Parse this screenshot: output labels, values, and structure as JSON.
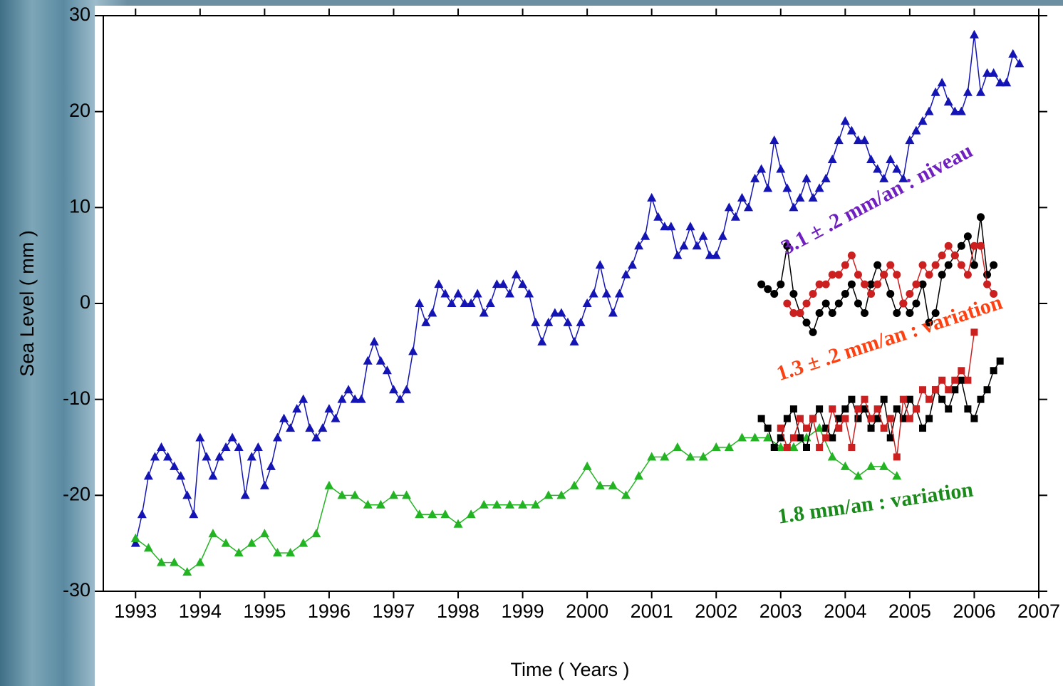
{
  "chart_data": {
    "type": "line",
    "xlabel": "Time  ( Years )",
    "ylabel": "Sea Level  ( mm )",
    "xlim": [
      1992.5,
      2007
    ],
    "ylim": [
      -30,
      30
    ],
    "xticks": [
      1993,
      1994,
      1995,
      1996,
      1997,
      1998,
      1999,
      2000,
      2001,
      2002,
      2003,
      2004,
      2005,
      2006,
      2007
    ],
    "yticks": [
      -30,
      -20,
      -10,
      0,
      10,
      20,
      30
    ],
    "series": [
      {
        "color": "#1414b4",
        "marker": "triangle",
        "x": [
          1993.0,
          1993.1,
          1993.2,
          1993.3,
          1993.4,
          1993.5,
          1993.6,
          1993.7,
          1993.8,
          1993.9,
          1994.0,
          1994.1,
          1994.2,
          1994.3,
          1994.4,
          1994.5,
          1994.6,
          1994.7,
          1994.8,
          1994.9,
          1995.0,
          1995.1,
          1995.2,
          1995.3,
          1995.4,
          1995.5,
          1995.6,
          1995.7,
          1995.8,
          1995.9,
          1996.0,
          1996.1,
          1996.2,
          1996.3,
          1996.4,
          1996.5,
          1996.6,
          1996.7,
          1996.8,
          1996.9,
          1997.0,
          1997.1,
          1997.2,
          1997.3,
          1997.4,
          1997.5,
          1997.6,
          1997.7,
          1997.8,
          1997.9,
          1998.0,
          1998.1,
          1998.2,
          1998.3,
          1998.4,
          1998.5,
          1998.6,
          1998.7,
          1998.8,
          1998.9,
          1999.0,
          1999.1,
          1999.2,
          1999.3,
          1999.4,
          1999.5,
          1999.6,
          1999.7,
          1999.8,
          1999.9,
          2000.0,
          2000.1,
          2000.2,
          2000.3,
          2000.4,
          2000.5,
          2000.6,
          2000.7,
          2000.8,
          2000.9,
          2001.0,
          2001.1,
          2001.2,
          2001.3,
          2001.4,
          2001.5,
          2001.6,
          2001.7,
          2001.8,
          2001.9,
          2002.0,
          2002.1,
          2002.2,
          2002.3,
          2002.4,
          2002.5,
          2002.6,
          2002.7,
          2002.8,
          2002.9,
          2003.0,
          2003.1,
          2003.2,
          2003.3,
          2003.4,
          2003.5,
          2003.6,
          2003.7,
          2003.8,
          2003.9,
          2004.0,
          2004.1,
          2004.2,
          2004.3,
          2004.4,
          2004.5,
          2004.6,
          2004.7,
          2004.8,
          2004.9,
          2005.0,
          2005.1,
          2005.2,
          2005.3,
          2005.4,
          2005.5,
          2005.6,
          2005.7,
          2005.8,
          2005.9,
          2006.0,
          2006.1,
          2006.2,
          2006.3,
          2006.4,
          2006.5,
          2006.6,
          2006.7
        ],
        "values": [
          -25,
          -22,
          -18,
          -16,
          -15,
          -16,
          -17,
          -18,
          -20,
          -22,
          -14,
          -16,
          -18,
          -16,
          -15,
          -14,
          -15,
          -20,
          -16,
          -15,
          -19,
          -17,
          -14,
          -12,
          -13,
          -11,
          -10,
          -13,
          -14,
          -13,
          -11,
          -12,
          -10,
          -9,
          -10,
          -10,
          -6,
          -4,
          -6,
          -7,
          -9,
          -10,
          -9,
          -5,
          0,
          -2,
          -1,
          2,
          1,
          0,
          1,
          0,
          0,
          1,
          -1,
          0,
          2,
          2,
          1,
          3,
          2,
          1,
          -2,
          -4,
          -2,
          -1,
          -1,
          -2,
          -4,
          -2,
          0,
          1,
          4,
          1,
          -1,
          1,
          3,
          4,
          6,
          7,
          11,
          9,
          8,
          8,
          5,
          6,
          8,
          6,
          7,
          5,
          5,
          7,
          10,
          9,
          11,
          10,
          13,
          14,
          12,
          17,
          14,
          12,
          10,
          11,
          13,
          11,
          12,
          13,
          15,
          17,
          19,
          18,
          17,
          17,
          15,
          14,
          13,
          15,
          14,
          13,
          17,
          18,
          19,
          20,
          22,
          23,
          21,
          20,
          20,
          22,
          28,
          22,
          24,
          24,
          23,
          23,
          26,
          25
        ]
      },
      {
        "color": "#22b422",
        "marker": "triangle",
        "x": [
          1993.0,
          1993.2,
          1993.4,
          1993.6,
          1993.8,
          1994.0,
          1994.2,
          1994.4,
          1994.6,
          1994.8,
          1995.0,
          1995.2,
          1995.4,
          1995.6,
          1995.8,
          1996.0,
          1996.2,
          1996.4,
          1996.6,
          1996.8,
          1997.0,
          1997.2,
          1997.4,
          1997.6,
          1997.8,
          1998.0,
          1998.2,
          1998.4,
          1998.6,
          1998.8,
          1999.0,
          1999.2,
          1999.4,
          1999.6,
          1999.8,
          2000.0,
          2000.2,
          2000.4,
          2000.6,
          2000.8,
          2001.0,
          2001.2,
          2001.4,
          2001.6,
          2001.8,
          2002.0,
          2002.2,
          2002.4,
          2002.6,
          2002.8,
          2003.0,
          2003.2,
          2003.4,
          2003.6,
          2003.8,
          2004.0,
          2004.2,
          2004.4,
          2004.6,
          2004.8
        ],
        "values": [
          -24.5,
          -25.5,
          -27,
          -27,
          -28,
          -27,
          -24,
          -25,
          -26,
          -25,
          -24,
          -26,
          -26,
          -25,
          -24,
          -19,
          -20,
          -20,
          -21,
          -21,
          -20,
          -20,
          -22,
          -22,
          -22,
          -23,
          -22,
          -21,
          -21,
          -21,
          -21,
          -21,
          -20,
          -20,
          -19,
          -17,
          -19,
          -19,
          -20,
          -18,
          -16,
          -16,
          -15,
          -16,
          -16,
          -15,
          -15,
          -14,
          -14,
          -14,
          -15,
          -15,
          -14,
          -13,
          -16,
          -17,
          -18,
          -17,
          -17,
          -18
        ]
      },
      {
        "color": "#000000",
        "marker": "circle",
        "x": [
          2002.7,
          2002.8,
          2002.9,
          2003.0,
          2003.1,
          2003.2,
          2003.3,
          2003.4,
          2003.5,
          2003.6,
          2003.7,
          2003.8,
          2003.9,
          2004.0,
          2004.1,
          2004.2,
          2004.3,
          2004.4,
          2004.5,
          2004.6,
          2004.7,
          2004.8,
          2004.9,
          2005.0,
          2005.1,
          2005.2,
          2005.3,
          2005.4,
          2005.5,
          2005.6,
          2005.7,
          2005.8,
          2005.9,
          2006.0,
          2006.1,
          2006.2,
          2006.3
        ],
        "values": [
          2,
          1.5,
          1,
          2,
          6,
          1,
          -1,
          -2,
          -3,
          -1,
          0,
          -1,
          0,
          1,
          2,
          0,
          -1,
          2,
          4,
          3,
          1,
          -1,
          0,
          -1,
          0,
          2,
          -2,
          -1,
          3,
          4,
          5,
          6,
          7,
          4,
          9,
          3,
          4
        ]
      },
      {
        "color": "#cc2020",
        "marker": "circle",
        "x": [
          2003.1,
          2003.2,
          2003.3,
          2003.4,
          2003.5,
          2003.6,
          2003.7,
          2003.8,
          2003.9,
          2004.0,
          2004.1,
          2004.2,
          2004.3,
          2004.4,
          2004.5,
          2004.6,
          2004.7,
          2004.8,
          2004.9,
          2005.0,
          2005.1,
          2005.2,
          2005.3,
          2005.4,
          2005.5,
          2005.6,
          2005.7,
          2005.8,
          2005.9,
          2006.0,
          2006.1,
          2006.2,
          2006.3
        ],
        "values": [
          0,
          -1,
          -1,
          0,
          1,
          2,
          2,
          3,
          3,
          4,
          5,
          3,
          2,
          1,
          2,
          3,
          4,
          3,
          0,
          1,
          2,
          4,
          3,
          4,
          5,
          6,
          5,
          4,
          3,
          6,
          6,
          2,
          1
        ]
      },
      {
        "color": "#000000",
        "marker": "square",
        "x": [
          2002.7,
          2002.8,
          2002.9,
          2003.0,
          2003.1,
          2003.2,
          2003.3,
          2003.4,
          2003.5,
          2003.6,
          2003.7,
          2003.8,
          2003.9,
          2004.0,
          2004.1,
          2004.2,
          2004.3,
          2004.4,
          2004.5,
          2004.6,
          2004.7,
          2004.8,
          2004.9,
          2005.0,
          2005.1,
          2005.2,
          2005.3,
          2005.4,
          2005.5,
          2005.6,
          2005.7,
          2005.8,
          2005.9,
          2006.0,
          2006.1,
          2006.2,
          2006.3,
          2006.4
        ],
        "values": [
          -12,
          -13,
          -15,
          -14,
          -12,
          -11,
          -14,
          -15,
          -12,
          -11,
          -13,
          -14,
          -12,
          -11,
          -10,
          -12,
          -11,
          -13,
          -12,
          -10,
          -14,
          -11,
          -12,
          -10,
          -11,
          -13,
          -12,
          -9,
          -10,
          -11,
          -9,
          -8,
          -11,
          -12,
          -10,
          -9,
          -7,
          -6
        ]
      },
      {
        "color": "#cc2020",
        "marker": "square",
        "x": [
          2003.0,
          2003.1,
          2003.2,
          2003.3,
          2003.4,
          2003.5,
          2003.6,
          2003.7,
          2003.8,
          2003.9,
          2004.0,
          2004.1,
          2004.2,
          2004.3,
          2004.4,
          2004.5,
          2004.6,
          2004.7,
          2004.8,
          2004.9,
          2005.0,
          2005.1,
          2005.2,
          2005.3,
          2005.4,
          2005.5,
          2005.6,
          2005.7,
          2005.8,
          2005.9,
          2006.0
        ],
        "values": [
          -13,
          -15,
          -14,
          -12,
          -13,
          -12,
          -15,
          -14,
          -11,
          -13,
          -12,
          -15,
          -11,
          -10,
          -12,
          -11,
          -13,
          -12,
          -16,
          -10,
          -12,
          -11,
          -9,
          -10,
          -9,
          -8,
          -9,
          -8,
          -7,
          -8,
          -3
        ]
      }
    ],
    "annotations": [
      {
        "text": "3.1 ± .2 mm/an : niveau",
        "color": "#7020c0"
      },
      {
        "text": "1.3 ± .2 mm/an : variation",
        "color": "#ff4010"
      },
      {
        "text": "1.8 mm/an : variation",
        "color": "#1a8a1a"
      }
    ]
  }
}
